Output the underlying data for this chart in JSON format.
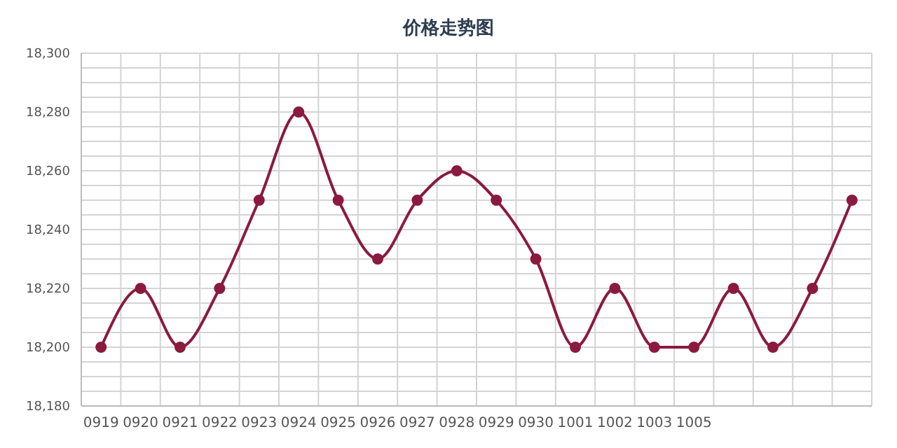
{
  "chart_data": {
    "type": "line",
    "title": "价格走势图",
    "categories": [
      "0919",
      "0920",
      "0921",
      "0922",
      "0923",
      "0924",
      "0925",
      "0926",
      "0927",
      "0928",
      "0929",
      "0930",
      "1001",
      "1002",
      "1003",
      "1005",
      null,
      null,
      null,
      null
    ],
    "series": [
      {
        "color": "#8b1a3f",
        "values": [
          18200,
          18220,
          18200,
          18220,
          18250,
          18280,
          18250,
          18230,
          18250,
          18260,
          18250,
          18230,
          18200,
          18220,
          18200,
          18200,
          18220,
          18200,
          18220,
          18250
        ]
      }
    ],
    "ylim": [
      18180,
      18300
    ],
    "yticks": [
      {
        "value": 18180,
        "label": "18,180"
      },
      {
        "value": 18185,
        "label": null
      },
      {
        "value": 18190,
        "label": null
      },
      {
        "value": 18195,
        "label": null
      },
      {
        "value": 18200,
        "label": "18,200"
      },
      {
        "value": 18205,
        "label": null
      },
      {
        "value": 18210,
        "label": null
      },
      {
        "value": 18215,
        "label": null
      },
      {
        "value": 18220,
        "label": "18,220"
      },
      {
        "value": 18225,
        "label": null
      },
      {
        "value": 18230,
        "label": null
      },
      {
        "value": 18235,
        "label": null
      },
      {
        "value": 18240,
        "label": "18,240"
      },
      {
        "value": 18245,
        "label": null
      },
      {
        "value": 18250,
        "label": null
      },
      {
        "value": 18255,
        "label": null
      },
      {
        "value": 18260,
        "label": "18,260"
      },
      {
        "value": 18265,
        "label": null
      },
      {
        "value": 18270,
        "label": null
      },
      {
        "value": 18275,
        "label": null
      },
      {
        "value": 18280,
        "label": "18,280"
      },
      {
        "value": 18285,
        "label": null
      },
      {
        "value": 18290,
        "label": null
      },
      {
        "value": 18295,
        "label": null
      },
      {
        "value": 18300,
        "label": "18,300"
      }
    ],
    "grid": true,
    "marker": "circle",
    "line_style": "solid"
  }
}
